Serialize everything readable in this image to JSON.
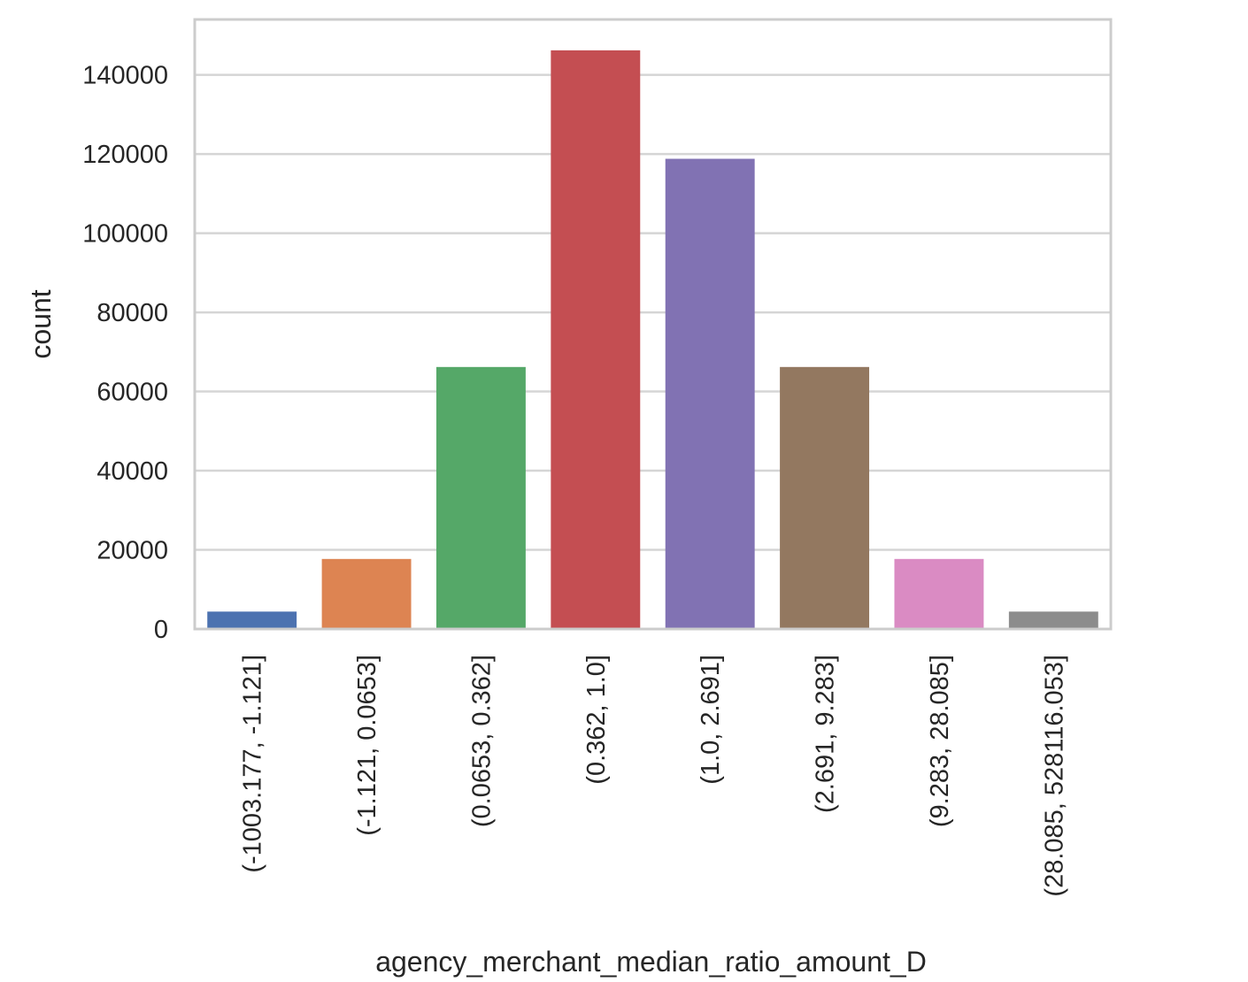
{
  "chart_data": {
    "type": "bar",
    "categories": [
      "(-1003.177, -1.121]",
      "(-1.121, 0.0653]",
      "(0.0653, 0.362]",
      "(0.362, 1.0]",
      "(1.0, 2.691]",
      "(2.691, 9.283]",
      "(9.283, 28.085]",
      "(28.085, 528116.053]"
    ],
    "values": [
      4400,
      17700,
      66200,
      146200,
      118800,
      66200,
      17700,
      4400
    ],
    "colors": [
      "#4c72b0",
      "#dd8452",
      "#55a868",
      "#c44e52",
      "#8172b3",
      "#937860",
      "#da8bc3",
      "#8c8c8c"
    ],
    "xlabel": "agency_merchant_median_ratio_amount_D",
    "ylabel": "count",
    "ylim": [
      0,
      154000
    ],
    "yticks": [
      0,
      20000,
      40000,
      60000,
      80000,
      100000,
      120000,
      140000
    ],
    "grid": true
  }
}
